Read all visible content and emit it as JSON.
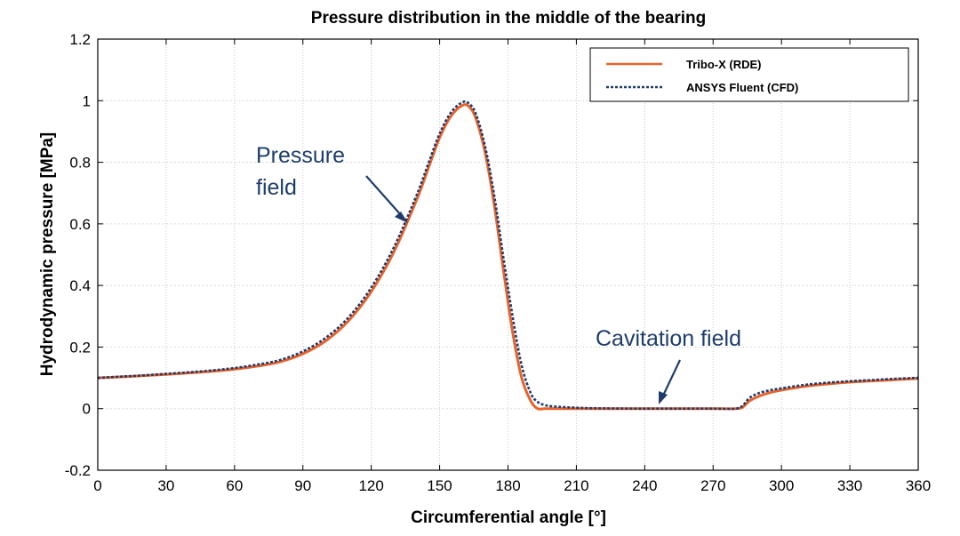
{
  "chart_data": {
    "type": "line",
    "title": "Pressure distribution in the middle of the bearing",
    "xlabel": "Circumferential angle [°]",
    "ylabel": "Hydrodynamic pressure [MPa]",
    "xlim": [
      0,
      360
    ],
    "ylim": [
      -0.2,
      1.2
    ],
    "xticks": [
      "0",
      "30",
      "60",
      "90",
      "120",
      "150",
      "180",
      "210",
      "240",
      "270",
      "300",
      "330",
      "360"
    ],
    "yticks": [
      "-0.2",
      "0",
      "0.2",
      "0.4",
      "0.6",
      "0.8",
      "1",
      "1.2"
    ],
    "grid": true,
    "legend_position": "top-right",
    "series": [
      {
        "name": "Tribo-X (RDE)",
        "color": "#e8622c",
        "style": "solid",
        "x": [
          0,
          10,
          20,
          30,
          40,
          50,
          60,
          70,
          80,
          90,
          100,
          110,
          120,
          130,
          140,
          145,
          150,
          155,
          160,
          163,
          166,
          170,
          174,
          178,
          182,
          186,
          190,
          193,
          196,
          200,
          210,
          220,
          240,
          260,
          270,
          280,
          283,
          286,
          290,
          295,
          300,
          310,
          320,
          330,
          340,
          350,
          360
        ],
        "y": [
          0.1,
          0.103,
          0.107,
          0.111,
          0.116,
          0.121,
          0.128,
          0.138,
          0.152,
          0.178,
          0.22,
          0.285,
          0.38,
          0.51,
          0.68,
          0.78,
          0.88,
          0.95,
          0.985,
          0.98,
          0.94,
          0.83,
          0.66,
          0.45,
          0.25,
          0.1,
          0.025,
          0.0,
          0.0,
          0.0,
          0.0,
          0.0,
          0.0,
          0.0,
          0.0,
          0.0,
          0.005,
          0.025,
          0.04,
          0.052,
          0.06,
          0.072,
          0.08,
          0.086,
          0.09,
          0.094,
          0.098
        ]
      },
      {
        "name": "ANSYS Fluent (CFD)",
        "color": "#1f3d6b",
        "style": "dotted",
        "x": [
          0,
          10,
          20,
          30,
          40,
          50,
          60,
          70,
          80,
          90,
          100,
          110,
          120,
          130,
          140,
          145,
          150,
          155,
          160,
          163,
          166,
          170,
          174,
          178,
          182,
          186,
          190,
          193,
          196,
          200,
          210,
          220,
          240,
          260,
          270,
          280,
          283,
          286,
          290,
          295,
          300,
          310,
          320,
          330,
          340,
          350,
          360
        ],
        "y": [
          0.1,
          0.104,
          0.108,
          0.113,
          0.118,
          0.124,
          0.132,
          0.143,
          0.158,
          0.186,
          0.23,
          0.296,
          0.393,
          0.525,
          0.695,
          0.795,
          0.893,
          0.962,
          0.995,
          0.99,
          0.955,
          0.85,
          0.69,
          0.49,
          0.3,
          0.14,
          0.05,
          0.022,
          0.012,
          0.007,
          0.003,
          0.001,
          0.0,
          0.0,
          0.0,
          0.0,
          0.01,
          0.035,
          0.05,
          0.06,
          0.066,
          0.077,
          0.084,
          0.089,
          0.093,
          0.097,
          0.1
        ]
      }
    ],
    "annotations": [
      {
        "lines": [
          "Pressure",
          "field"
        ],
        "target": [
          137,
          0.61
        ]
      },
      {
        "lines": [
          "Cavitation field"
        ],
        "target": [
          245,
          0.005
        ]
      }
    ]
  }
}
